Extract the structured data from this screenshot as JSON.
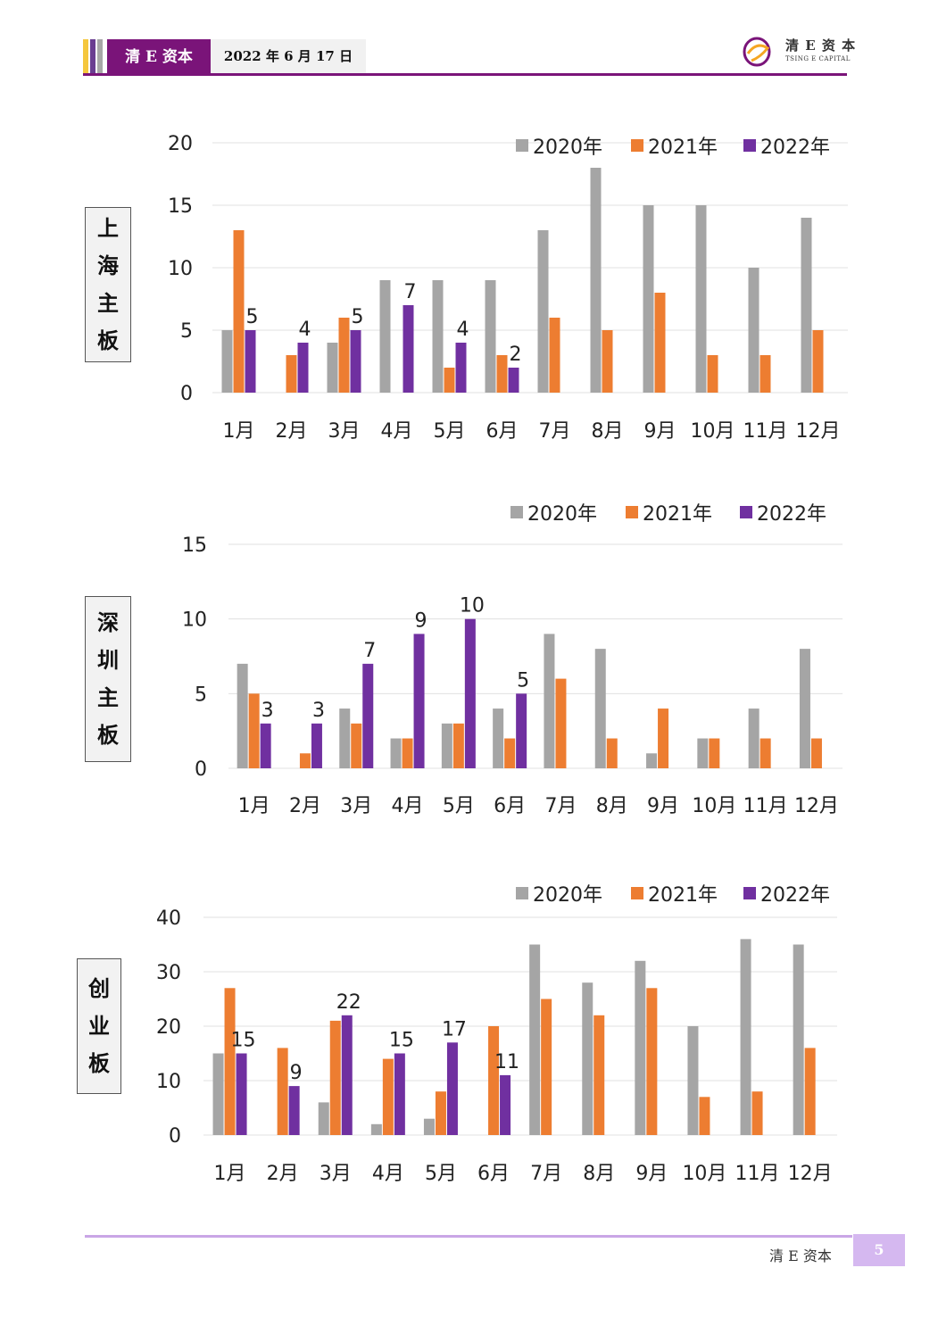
{
  "header": {
    "brand": "清 E 资本",
    "date": "2022 年 6 月 17 日",
    "logo_cn": "清 E 资 本",
    "logo_en": "TSING E CAPITAL",
    "stripe_colors": [
      "#f5c73d",
      "#6a3d91",
      "#a7a7a7",
      "#7a1479"
    ]
  },
  "footer": {
    "brand": "清 E 资本",
    "page": "5"
  },
  "colors": {
    "s2020": "#a5a5a5",
    "s2021": "#ed7d31",
    "s2022": "#7030a0",
    "grid": "#e0e0e0"
  },
  "chart_data": [
    {
      "type": "bar",
      "side_label": [
        "上",
        "海",
        "主",
        "板"
      ],
      "categories": [
        "1月",
        "2月",
        "3月",
        "4月",
        "5月",
        "6月",
        "7月",
        "8月",
        "9月",
        "10月",
        "11月",
        "12月"
      ],
      "series": [
        {
          "name": "2020年",
          "values": [
            5,
            0,
            4,
            9,
            9,
            9,
            13,
            18,
            15,
            15,
            10,
            14
          ]
        },
        {
          "name": "2021年",
          "values": [
            13,
            3,
            6,
            0,
            2,
            3,
            6,
            5,
            8,
            3,
            3,
            5
          ]
        },
        {
          "name": "2022年",
          "values": [
            5,
            4,
            5,
            7,
            4,
            2,
            null,
            null,
            null,
            null,
            null,
            null
          ]
        }
      ],
      "labeled_series": 2,
      "yticks": [
        0,
        5,
        10,
        15,
        20
      ],
      "ylim": [
        0,
        20
      ],
      "grid": true,
      "legend": "top-right"
    },
    {
      "type": "bar",
      "side_label": [
        "深",
        "圳",
        "主",
        "板"
      ],
      "categories": [
        "1月",
        "2月",
        "3月",
        "4月",
        "5月",
        "6月",
        "7月",
        "8月",
        "9月",
        "10月",
        "11月",
        "12月"
      ],
      "series": [
        {
          "name": "2020年",
          "values": [
            7,
            0,
            4,
            2,
            3,
            4,
            9,
            8,
            1,
            2,
            4,
            8
          ]
        },
        {
          "name": "2021年",
          "values": [
            5,
            1,
            3,
            2,
            3,
            2,
            6,
            2,
            4,
            2,
            2,
            2
          ]
        },
        {
          "name": "2022年",
          "values": [
            3,
            3,
            7,
            9,
            10,
            5,
            null,
            null,
            null,
            null,
            null,
            null
          ]
        }
      ],
      "labeled_series": 2,
      "yticks": [
        0,
        5,
        10,
        15
      ],
      "ylim": [
        0,
        15
      ],
      "grid": true,
      "legend": "top-right"
    },
    {
      "type": "bar",
      "side_label": [
        "创",
        "业",
        "板"
      ],
      "categories": [
        "1月",
        "2月",
        "3月",
        "4月",
        "5月",
        "6月",
        "7月",
        "8月",
        "9月",
        "10月",
        "11月",
        "12月"
      ],
      "series": [
        {
          "name": "2020年",
          "values": [
            15,
            0,
            6,
            2,
            3,
            0,
            35,
            28,
            32,
            20,
            36,
            35
          ]
        },
        {
          "name": "2021年",
          "values": [
            27,
            16,
            21,
            14,
            8,
            20,
            25,
            22,
            27,
            7,
            8,
            16
          ]
        },
        {
          "name": "2022年",
          "values": [
            15,
            9,
            22,
            15,
            17,
            11,
            null,
            null,
            null,
            null,
            null,
            null
          ]
        }
      ],
      "labeled_series": 2,
      "yticks": [
        0,
        10,
        20,
        30,
        40
      ],
      "ylim": [
        0,
        40
      ],
      "grid": true,
      "legend": "top-right"
    }
  ]
}
